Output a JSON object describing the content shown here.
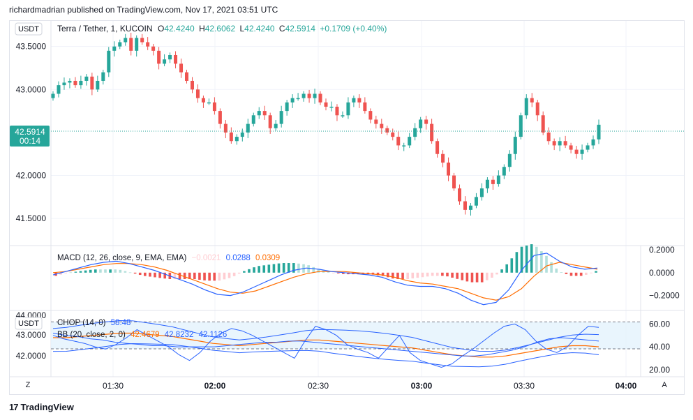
{
  "header": {
    "publisher_text": "richardmadrian published on TradingView.com, Nov 17, 2021 03:51 UTC"
  },
  "main_pane": {
    "currency_badge": "USDT",
    "symbol_title": "Terra / Tether, 1, KUCOIN",
    "ohlc": {
      "o_label": "O",
      "o_value": "42.4240",
      "h_label": "H",
      "h_value": "42.6062",
      "l_label": "L",
      "l_value": "42.4240",
      "c_label": "C",
      "c_value": "42.5914",
      "change": "+0.1709 (+0.40%)"
    },
    "price_tag": "42.5914",
    "countdown": "00:14",
    "y_ticks": [
      "43.5000",
      "43.0000",
      "42.0000",
      "41.5000"
    ]
  },
  "macd_pane": {
    "label": "MACD (12, 26, close, 9, EMA, EMA)",
    "hist_value": "−0.0021",
    "macd_value": "0.0288",
    "signal_value": "0.0309",
    "y_ticks": [
      "0.2000",
      "0.0000",
      "−0.2000"
    ]
  },
  "chop_pane": {
    "currency_badge": "USDT",
    "chop_label": "CHOP (14, 0)",
    "chop_value": "58.48",
    "bb_label": "BB (20, close, 2, 0)",
    "bb_basis": "42.4679",
    "bb_upper": "42.8232",
    "bb_lower": "42.1126",
    "left_y_ticks": [
      "44.0000",
      "43.0000",
      "42.0000"
    ],
    "right_y_ticks": [
      "60.00",
      "40.00",
      "20.00"
    ]
  },
  "time_axis": {
    "ticks": [
      "01:30",
      "02:00",
      "02:30",
      "03:00",
      "03:30",
      "04:00"
    ],
    "left_button": "Z",
    "right_button": "A"
  },
  "footer": {
    "logo_text": "TradingView"
  },
  "colors": {
    "up": "#26a69a",
    "down": "#ef5350",
    "macd_line": "#2962ff",
    "signal_line": "#ff6d00",
    "hist_up_strong": "#26a69a",
    "hist_up_weak": "#b2dfdb",
    "hist_down_strong": "#ef5350",
    "hist_down_weak": "#ffcdd2",
    "bb_fill": "#e3f2fd"
  },
  "chart_data": [
    {
      "type": "candlestick",
      "title": "Terra / Tether, 1, KUCOIN",
      "x_ticks": [
        "01:30",
        "02:00",
        "02:30",
        "03:00",
        "03:30",
        "04:00"
      ],
      "ylim": [
        41.25,
        43.7
      ],
      "y_ticks": [
        43.5,
        43.0,
        42.0,
        41.5
      ],
      "last_price": 42.5914,
      "close_path": [
        42.95,
        43.05,
        43.08,
        43.1,
        43.05,
        43.1,
        43.15,
        43.0,
        43.1,
        43.2,
        43.45,
        43.5,
        43.55,
        43.6,
        43.45,
        43.6,
        43.55,
        43.5,
        43.45,
        43.3,
        43.35,
        43.4,
        43.3,
        43.2,
        43.1,
        43.0,
        42.9,
        42.85,
        42.85,
        42.75,
        42.6,
        42.5,
        42.4,
        42.45,
        42.5,
        42.6,
        42.7,
        42.75,
        42.7,
        42.55,
        42.6,
        42.75,
        42.85,
        42.9,
        42.9,
        42.95,
        42.9,
        42.95,
        42.85,
        42.8,
        42.8,
        42.7,
        42.7,
        42.85,
        42.9,
        42.85,
        42.75,
        42.65,
        42.6,
        42.55,
        42.5,
        42.45,
        42.35,
        42.35,
        42.45,
        42.55,
        42.65,
        42.6,
        42.4,
        42.25,
        42.15,
        42.0,
        41.85,
        41.7,
        41.6,
        41.65,
        41.75,
        41.85,
        41.95,
        41.9,
        42.0,
        42.1,
        42.25,
        42.45,
        42.7,
        42.9,
        42.85,
        42.7,
        42.5,
        42.4,
        42.35,
        42.4,
        42.35,
        42.3,
        42.25,
        42.3,
        42.35,
        42.42,
        42.59
      ]
    },
    {
      "type": "line",
      "title": "MACD (12, 26, close, 9, EMA, EMA)",
      "ylim": [
        -0.3,
        0.2
      ],
      "y_ticks": [
        0.2,
        0.0,
        -0.2
      ],
      "last_values": {
        "histogram": -0.0021,
        "macd": 0.0288,
        "signal": 0.0309
      },
      "series": [
        {
          "name": "MACD",
          "values": [
            -0.02,
            0.01,
            0.04,
            0.07,
            0.09,
            0.1,
            0.08,
            0.05,
            0.02,
            -0.02,
            -0.06,
            -0.1,
            -0.15,
            -0.19,
            -0.2,
            -0.17,
            -0.12,
            -0.07,
            -0.02,
            0.02,
            0.04,
            0.03,
            0.01,
            0.0,
            -0.01,
            -0.02,
            -0.04,
            -0.08,
            -0.11,
            -0.12,
            -0.12,
            -0.14,
            -0.18,
            -0.24,
            -0.28,
            -0.26,
            -0.15,
            0.02,
            0.15,
            0.17,
            0.1,
            0.05,
            0.03,
            0.04
          ]
        },
        {
          "name": "Signal",
          "values": [
            0.0,
            0.01,
            0.03,
            0.05,
            0.07,
            0.08,
            0.08,
            0.07,
            0.05,
            0.02,
            -0.02,
            -0.06,
            -0.1,
            -0.14,
            -0.17,
            -0.18,
            -0.16,
            -0.12,
            -0.08,
            -0.04,
            -0.01,
            0.01,
            0.01,
            0.01,
            0.0,
            -0.01,
            -0.02,
            -0.04,
            -0.07,
            -0.09,
            -0.1,
            -0.12,
            -0.14,
            -0.18,
            -0.22,
            -0.24,
            -0.21,
            -0.14,
            -0.03,
            0.06,
            0.09,
            0.07,
            0.05,
            0.03
          ]
        }
      ]
    },
    {
      "type": "line",
      "title": "CHOP (14, 0) / BB (20, close, 2, 0)",
      "ylim_chop": [
        15,
        70
      ],
      "right_y_ticks": [
        60,
        40,
        20
      ],
      "left_y_ticks": [
        44.0,
        43.0,
        42.0
      ],
      "bands": [
        61.8,
        38.2
      ],
      "last_values": {
        "chop": 58.48,
        "bb_basis": 42.4679,
        "bb_upper": 42.8232,
        "bb_lower": 42.1126
      },
      "series": [
        {
          "name": "CHOP",
          "values": [
            50,
            47,
            45,
            43,
            40,
            38,
            42,
            48,
            55,
            50,
            45,
            40,
            33,
            28,
            35,
            45,
            52,
            56,
            54,
            50,
            45,
            40,
            35,
            30,
            45,
            58,
            55,
            50,
            42,
            38,
            35,
            30,
            40,
            50,
            35,
            28,
            25,
            22,
            25,
            32,
            38,
            45,
            52,
            58,
            60,
            55,
            45,
            38,
            35,
            40,
            50,
            58,
            57
          ]
        },
        {
          "name": "CHOP-2",
          "values": [
            52,
            50,
            49,
            47,
            46,
            44,
            43,
            42,
            41,
            41,
            40,
            40,
            40,
            40,
            41,
            42,
            43,
            44,
            44,
            45,
            45,
            44,
            43,
            42,
            41,
            40,
            39,
            38,
            37,
            36,
            35,
            34,
            33,
            32,
            32,
            33,
            35,
            37,
            40,
            44,
            47,
            48,
            47,
            46,
            45
          ]
        },
        {
          "name": "BB basis",
          "values": [
            48,
            48,
            49,
            50,
            51,
            52,
            52,
            51,
            50,
            49,
            47,
            45,
            43,
            42,
            41,
            42,
            43,
            44,
            45,
            46,
            46,
            45,
            44,
            43,
            42,
            41,
            40,
            39,
            37,
            35,
            33,
            32,
            31,
            31,
            32,
            34,
            36,
            38,
            40,
            41,
            41,
            40
          ]
        }
      ]
    }
  ]
}
